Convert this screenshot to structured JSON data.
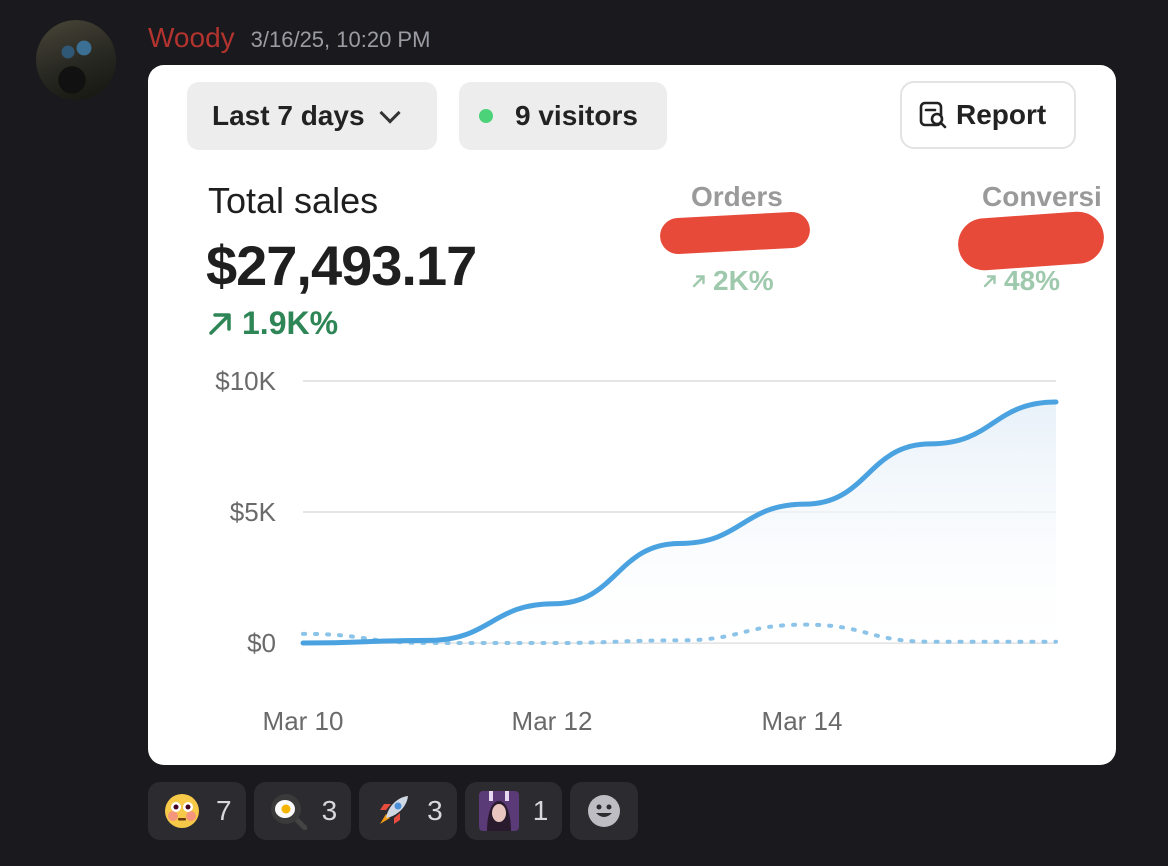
{
  "message": {
    "username": "Woody",
    "timestamp": "3/16/25, 10:20 PM"
  },
  "card": {
    "range_label": "Last 7 days",
    "visitors_label": "9 visitors",
    "report_label": "Report",
    "total_sales_title": "Total sales",
    "total_sales_value": "$27,493.17",
    "total_sales_change": "1.9K%",
    "metrics": [
      {
        "label": "Orders",
        "change": "2K%"
      },
      {
        "label": "Conversi",
        "change": "48%"
      }
    ]
  },
  "colors": {
    "accent_line": "#4aa3e0",
    "positive": "#2e8555",
    "muted_positive": "#9fc9ad",
    "redaction": "#e84a3a",
    "username": "#b3332e"
  },
  "chart_data": {
    "type": "line",
    "x_labels": [
      "Mar 10",
      "Mar 12",
      "Mar 14"
    ],
    "y_labels": [
      "$10K",
      "$5K",
      "$0"
    ],
    "ylim": [
      0,
      10000
    ],
    "grid": true,
    "series": [
      {
        "style": "solid",
        "x": [
          "Mar 10",
          "Mar 11",
          "Mar 12",
          "Mar 13",
          "Mar 14",
          "Mar 15",
          "Mar 16"
        ],
        "values": [
          0,
          100,
          1500,
          3800,
          5300,
          7600,
          9200
        ]
      },
      {
        "style": "dotted",
        "x": [
          "Mar 10",
          "Mar 11",
          "Mar 12",
          "Mar 13",
          "Mar 14",
          "Mar 15",
          "Mar 16"
        ],
        "values": [
          350,
          0,
          0,
          100,
          700,
          50,
          50
        ]
      }
    ]
  },
  "reactions": [
    {
      "icon": "flushed-face-icon",
      "count": "7"
    },
    {
      "icon": "fried-egg-pan-icon",
      "count": "3"
    },
    {
      "icon": "rocket-icon",
      "count": "3"
    },
    {
      "icon": "custom-avatar-emoji-icon",
      "count": "1"
    },
    {
      "icon": "add-reaction-icon",
      "count": ""
    }
  ]
}
